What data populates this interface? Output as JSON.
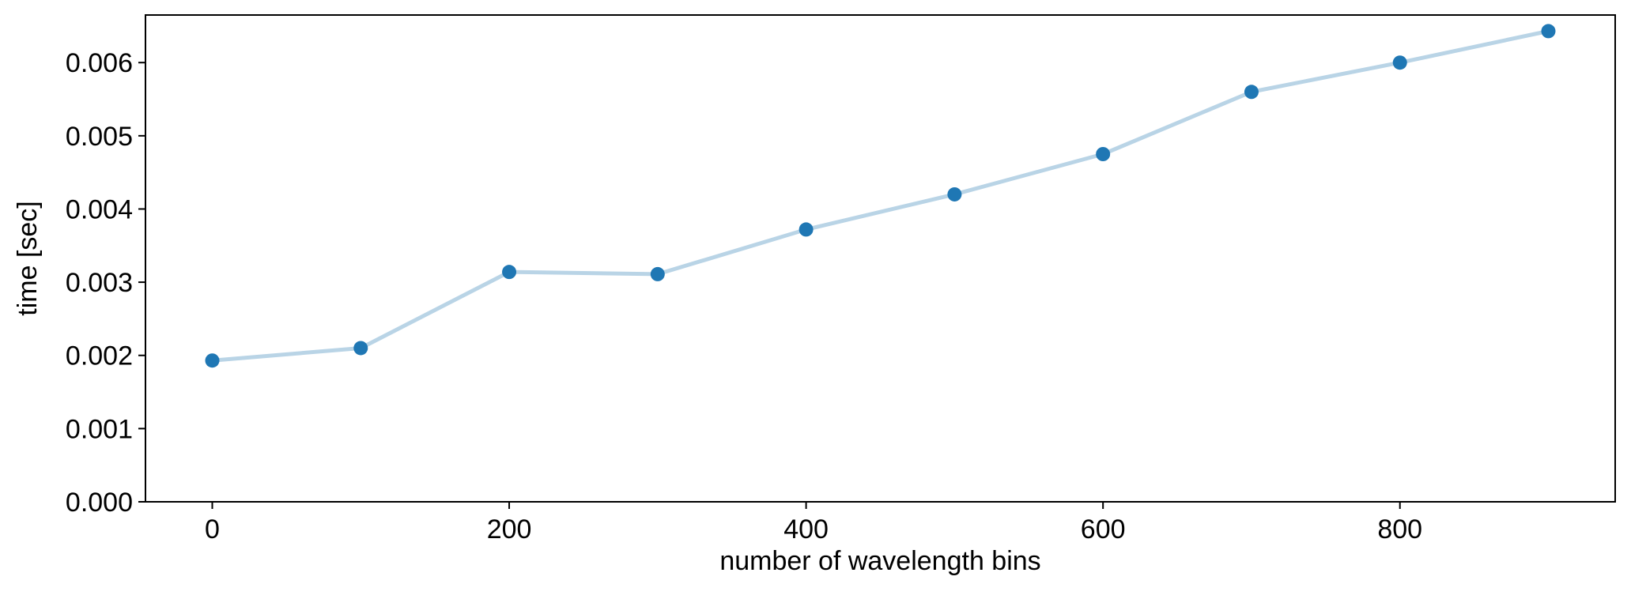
{
  "chart_data": {
    "type": "line",
    "title": "",
    "xlabel": "number of wavelength bins",
    "ylabel": "time [sec]",
    "xlim": [
      -45,
      945
    ],
    "ylim": [
      0.0,
      0.00665
    ],
    "x_ticks": [
      0,
      200,
      400,
      600,
      800
    ],
    "x_tick_labels": [
      "0",
      "200",
      "400",
      "600",
      "800"
    ],
    "y_ticks": [
      0.0,
      0.001,
      0.002,
      0.003,
      0.004,
      0.005,
      0.006
    ],
    "y_tick_labels": [
      "0.000",
      "0.001",
      "0.002",
      "0.003",
      "0.004",
      "0.005",
      "0.006"
    ],
    "grid": false,
    "line_color": "#b9d4e6",
    "marker_color": "#1f77b4",
    "series": [
      {
        "x": [
          0,
          100,
          200,
          300,
          400,
          500,
          600,
          700,
          800,
          900
        ],
        "y": [
          0.00193,
          0.0021,
          0.00314,
          0.00311,
          0.00372,
          0.0042,
          0.00475,
          0.0056,
          0.006,
          0.00643
        ]
      }
    ]
  }
}
